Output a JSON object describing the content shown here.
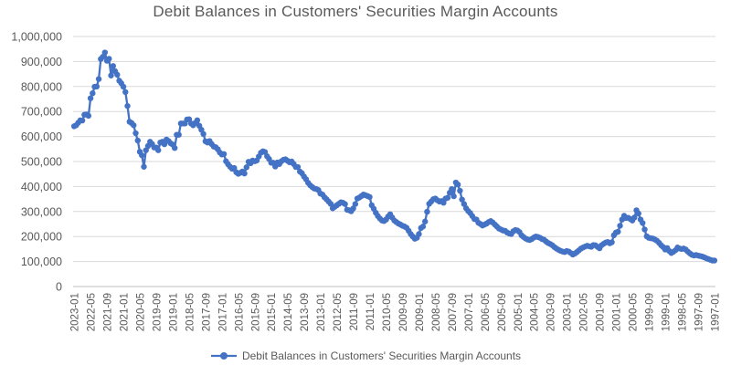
{
  "chart_data": {
    "type": "line",
    "title": "Debit Balances in Customers' Securities Margin Accounts",
    "legend": {
      "position": "bottom",
      "label": "Debit Balances in Customers' Securities Margin Accounts"
    },
    "colors": {
      "series": "#4472C4",
      "gridline": "#D9D9D9",
      "axis_line": "#BFBFBF",
      "text": "#595959",
      "background": "#FFFFFF"
    },
    "y_axis": {
      "min": 0,
      "max": 1000000,
      "step": 100000,
      "grid": true,
      "tick_labels_top_down": [
        "1,000,000",
        "900,000",
        "800,000",
        "700,000",
        "600,000",
        "500,000",
        "400,000",
        "300,000",
        "200,000",
        "100,000",
        "0"
      ]
    },
    "x_axis": {
      "first_point": "2023-01",
      "last_point": "1997-01",
      "order": "newest-to-oldest (time reversed, monthly)",
      "monthly_points": 313,
      "tick_every_n_months": 8,
      "tick_label_rotation_deg": 90,
      "tick_labels": [
        "2023-01",
        "2022-05",
        "2021-09",
        "2021-01",
        "2020-05",
        "2019-09",
        "2019-01",
        "2018-05",
        "2017-09",
        "2017-01",
        "2016-05",
        "2015-09",
        "2015-01",
        "2014-05",
        "2013-09",
        "2013-01",
        "2012-05",
        "2011-09",
        "2011-01",
        "2010-05",
        "2009-09",
        "2009-01",
        "2008-05",
        "2007-09",
        "2007-01",
        "2006-05",
        "2005-09",
        "2005-01",
        "2004-05",
        "2003-09",
        "2003-01",
        "2002-05",
        "2001-09",
        "2001-01",
        "2000-05",
        "1999-09",
        "1999-01",
        "1998-05",
        "1997-09",
        "1997-01"
      ]
    },
    "series": [
      {
        "name": "Debit Balances in Customers' Securities Margin Accounts",
        "marker": "circle",
        "axis_units_per_value": 1000,
        "values_in_thousands": [
          641,
          645,
          655,
          665,
          664,
          687,
          688,
          683,
          753,
          773,
          799,
          800,
          830,
          910,
          919,
          936,
          903,
          911,
          844,
          882,
          861,
          847,
          823,
          813,
          799,
          778,
          722,
          659,
          654,
          645,
          613,
          584,
          539,
          525,
          479,
          545,
          562,
          579,
          570,
          556,
          556,
          545,
          576,
          579,
          569,
          588,
          582,
          573,
          568,
          554,
          607,
          607,
          652,
          652,
          652,
          668,
          669,
          652,
          645,
          654,
          665,
          643,
          627,
          610,
          581,
          576,
          582,
          570,
          560,
          557,
          549,
          536,
          528,
          530,
          501,
          489,
          479,
          471,
          474,
          457,
          451,
          455,
          460,
          452,
          477,
          499,
          493,
          504,
          501,
          504,
          520,
          535,
          541,
          538,
          521,
          510,
          495,
          495,
          480,
          496,
          490,
          501,
          507,
          509,
          503,
          497,
          500,
          490,
          478,
          478,
          460,
          453,
          440,
          429,
          415,
          405,
          398,
          392,
          390,
          386,
          372,
          368,
          357,
          349,
          340,
          331,
          313,
          319,
          325,
          331,
          337,
          335,
          330,
          307,
          305,
          301,
          312,
          330,
          352,
          356,
          362,
          368,
          365,
          362,
          358,
          325,
          311,
          295,
          282,
          272,
          264,
          262,
          268,
          280,
          289,
          276,
          264,
          258,
          252,
          248,
          243,
          240,
          235,
          223,
          210,
          200,
          191,
          195,
          210,
          234,
          240,
          260,
          299,
          331,
          340,
          349,
          352,
          345,
          340,
          342,
          335,
          352,
          355,
          375,
          390,
          361,
          416,
          408,
          383,
          348,
          330,
          313,
          302,
          294,
          282,
          270,
          268,
          255,
          250,
          244,
          248,
          252,
          258,
          262,
          256,
          248,
          240,
          232,
          228,
          224,
          223,
          216,
          212,
          210,
          221,
          226,
          224,
          218,
          205,
          198,
          192,
          188,
          186,
          190,
          196,
          200,
          198,
          195,
          190,
          187,
          180,
          174,
          170,
          165,
          158,
          152,
          147,
          143,
          140,
          138,
          142,
          140,
          134,
          128,
          132,
          138,
          145,
          152,
          156,
          160,
          163,
          161,
          159,
          166,
          165,
          159,
          153,
          165,
          171,
          176,
          178,
          173,
          177,
          205,
          216,
          219,
          243,
          268,
          283,
          274,
          275,
          270,
          264,
          276,
          305,
          292,
          268,
          254,
          228,
          201,
          195,
          193,
          192,
          188,
          183,
          175,
          165,
          158,
          148,
          154,
          142,
          134,
          139,
          145,
          156,
          152,
          150,
          152,
          148,
          140,
          133,
          127,
          124,
          126,
          124,
          122,
          120,
          117,
          113,
          110,
          107,
          104,
          104
        ]
      }
    ]
  }
}
